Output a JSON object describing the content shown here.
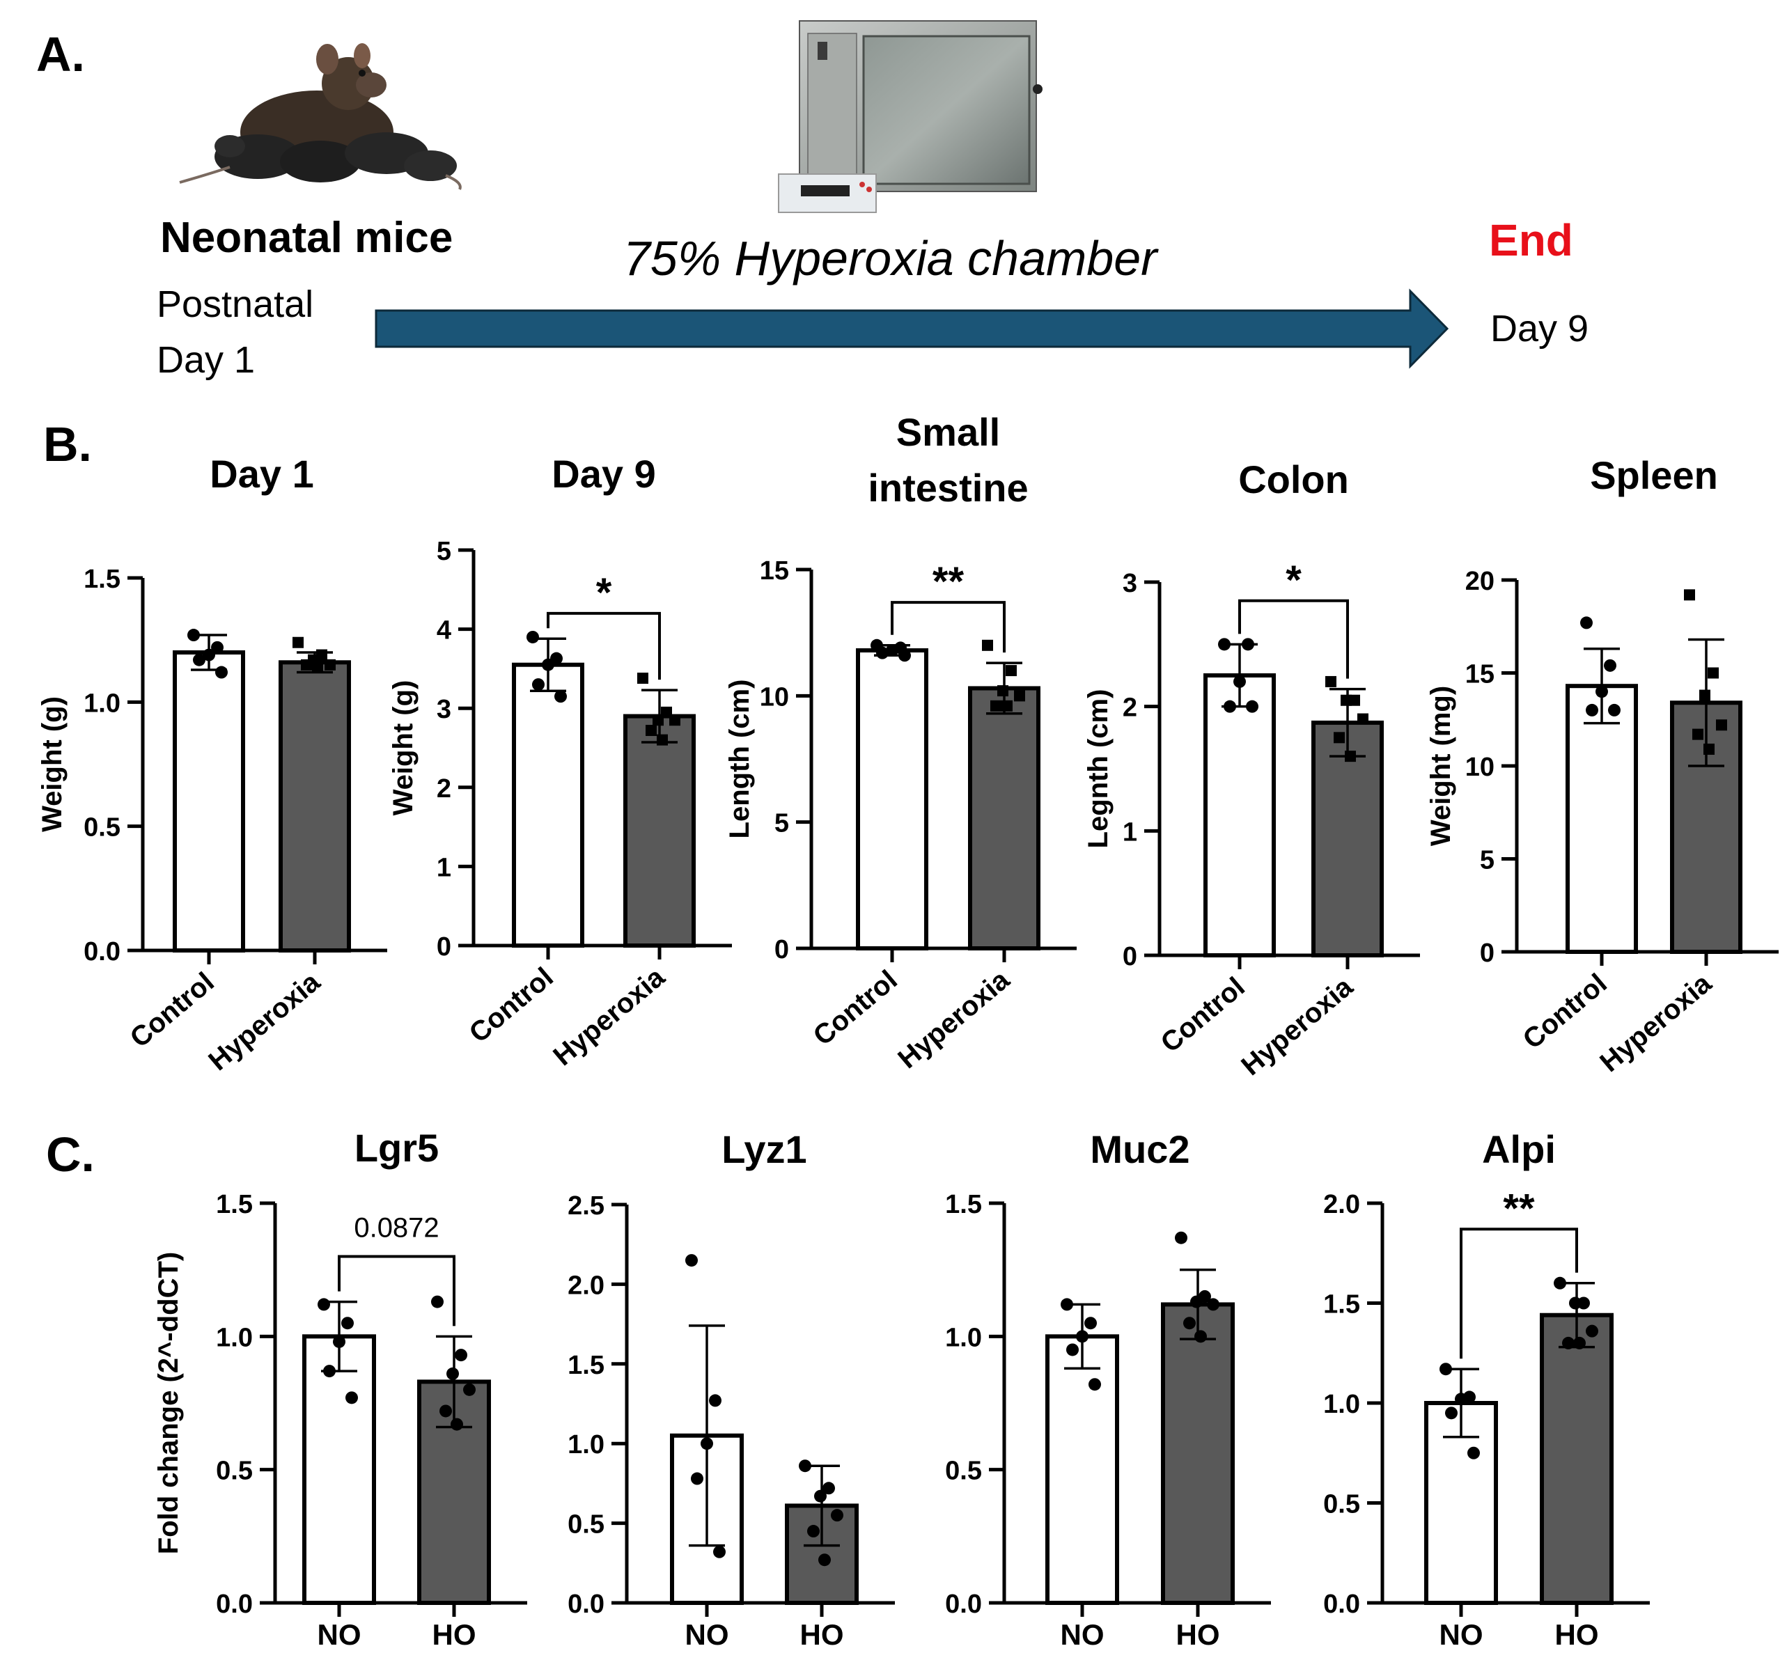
{
  "panel_a": {
    "letter": "A.",
    "start_title": "Neonatal mice",
    "start_line1": "Postnatal",
    "start_line2": "Day 1",
    "chamber_label": "75% Hyperoxia chamber",
    "end_title": "End",
    "end_day": "Day 9",
    "colors": {
      "arrow": "#1b5577",
      "end_text": "#e8101a"
    }
  },
  "panel_b": {
    "letter": "B."
  },
  "panel_c": {
    "letter": "C."
  },
  "colors": {
    "control_bar": "#ffffff",
    "treated_bar": "#595959",
    "ink": "#000000"
  },
  "chart_data": [
    {
      "id": "b1",
      "type": "bar",
      "title": [
        "Day 1"
      ],
      "ylabel": "Weight (g)",
      "ylim": [
        0,
        1.5
      ],
      "yticks": [
        "0.0",
        "0.5",
        "1.0",
        "1.5"
      ],
      "categories": [
        "Control",
        "Hyperoxia"
      ],
      "rotated_labels": true,
      "values": [
        1.2,
        1.16
      ],
      "sd": [
        0.07,
        0.04
      ],
      "points": [
        [
          1.27,
          1.22,
          1.19,
          1.17,
          1.12
        ],
        [
          1.24,
          1.19,
          1.17,
          1.15,
          1.15,
          1.14
        ]
      ],
      "significance": null
    },
    {
      "id": "b2",
      "type": "bar",
      "title": [
        "Day 9"
      ],
      "ylabel": "Weight (g)",
      "ylim": [
        0,
        5
      ],
      "yticks": [
        "0",
        "1",
        "2",
        "3",
        "4",
        "5"
      ],
      "categories": [
        "Control",
        "Hyperoxia"
      ],
      "rotated_labels": true,
      "values": [
        3.55,
        2.9
      ],
      "sd": [
        0.33,
        0.33
      ],
      "points": [
        [
          3.9,
          3.63,
          3.55,
          3.3,
          3.15
        ],
        [
          3.38,
          2.95,
          2.85,
          2.85,
          2.72,
          2.6
        ]
      ],
      "significance": {
        "label": "*",
        "y": 4.2
      }
    },
    {
      "id": "b3",
      "type": "bar",
      "title": [
        "Small",
        "intestine"
      ],
      "ylabel": "Length (cm)",
      "ylim": [
        0,
        15
      ],
      "yticks": [
        "0",
        "5",
        "10",
        "15"
      ],
      "categories": [
        "Control",
        "Hyperoxia"
      ],
      "rotated_labels": true,
      "values": [
        11.8,
        10.3
      ],
      "sd": [
        0.2,
        1.0
      ],
      "points": [
        [
          12.0,
          11.9,
          11.8,
          11.7,
          11.6
        ],
        [
          12.0,
          11.0,
          10.2,
          10.0,
          9.6,
          9.6
        ]
      ],
      "significance": {
        "label": "**",
        "y": 13.7
      }
    },
    {
      "id": "b4",
      "type": "bar",
      "title": [
        "Colon"
      ],
      "ylabel": "Legnth (cm)",
      "ylim": [
        0,
        3
      ],
      "yticks": [
        "0",
        "1",
        "2",
        "3"
      ],
      "categories": [
        "Control",
        "Hyperoxia"
      ],
      "rotated_labels": true,
      "values": [
        2.25,
        1.87
      ],
      "sd": [
        0.25,
        0.27
      ],
      "points": [
        [
          2.5,
          2.5,
          2.2,
          2.0,
          2.0
        ],
        [
          2.2,
          2.05,
          2.05,
          1.9,
          1.75,
          1.6
        ]
      ],
      "significance": {
        "label": "*",
        "y": 2.85
      }
    },
    {
      "id": "b5",
      "type": "bar",
      "title": [
        "Spleen"
      ],
      "ylabel": "Weight (mg)",
      "ylim": [
        0,
        20
      ],
      "yticks": [
        "0",
        "5",
        "10",
        "15",
        "20"
      ],
      "categories": [
        "Control",
        "Hyperoxia"
      ],
      "rotated_labels": true,
      "values": [
        14.3,
        13.4
      ],
      "sd": [
        2.0,
        3.4
      ],
      "points": [
        [
          17.7,
          15.4,
          14.0,
          13.0,
          13.0
        ],
        [
          19.2,
          15.0,
          13.8,
          12.2,
          11.7,
          10.9
        ]
      ],
      "significance": null
    },
    {
      "id": "c1",
      "type": "bar",
      "title": [
        "Lgr5"
      ],
      "ylabel": "Fold change (2^-ddCT)",
      "ylim": [
        0,
        1.5
      ],
      "yticks": [
        "0.0",
        "0.5",
        "1.0",
        "1.5"
      ],
      "categories": [
        "NO",
        "HO"
      ],
      "rotated_labels": false,
      "values": [
        1.0,
        0.83
      ],
      "sd": [
        0.13,
        0.17
      ],
      "points": [
        [
          1.12,
          1.05,
          0.98,
          0.87,
          0.77
        ],
        [
          1.13,
          0.93,
          0.86,
          0.8,
          0.72,
          0.67
        ]
      ],
      "significance": {
        "label": "0.0872",
        "y": 1.3
      }
    },
    {
      "id": "c2",
      "type": "bar",
      "title": [
        "Lyz1"
      ],
      "ylabel": "",
      "ylim": [
        0,
        2.5
      ],
      "yticks": [
        "0.0",
        "0.5",
        "1.0",
        "1.5",
        "2.0",
        "2.5"
      ],
      "categories": [
        "NO",
        "HO"
      ],
      "rotated_labels": false,
      "values": [
        1.05,
        0.61
      ],
      "sd": [
        0.69,
        0.25
      ],
      "points": [
        [
          2.15,
          1.27,
          1.0,
          0.78,
          0.32
        ],
        [
          0.86,
          0.72,
          0.67,
          0.55,
          0.45,
          0.27
        ]
      ],
      "significance": null
    },
    {
      "id": "c3",
      "type": "bar",
      "title": [
        "Muc2"
      ],
      "ylabel": "",
      "ylim": [
        0,
        1.5
      ],
      "yticks": [
        "0.0",
        "0.5",
        "1.0",
        "1.5"
      ],
      "categories": [
        "NO",
        "HO"
      ],
      "rotated_labels": false,
      "values": [
        1.0,
        1.12
      ],
      "sd": [
        0.12,
        0.13
      ],
      "points": [
        [
          1.12,
          1.05,
          1.0,
          0.95,
          0.82
        ],
        [
          1.37,
          1.15,
          1.13,
          1.12,
          1.05,
          1.0
        ]
      ],
      "significance": null
    },
    {
      "id": "c4",
      "type": "bar",
      "title": [
        "Alpi"
      ],
      "ylabel": "",
      "ylim": [
        0,
        2.0
      ],
      "yticks": [
        "0.0",
        "0.5",
        "1.0",
        "1.5",
        "2.0"
      ],
      "categories": [
        "NO",
        "HO"
      ],
      "rotated_labels": false,
      "values": [
        1.0,
        1.44
      ],
      "sd": [
        0.17,
        0.16
      ],
      "points": [
        [
          1.17,
          1.03,
          1.02,
          0.95,
          0.75
        ],
        [
          1.6,
          1.5,
          1.5,
          1.36,
          1.3,
          1.3
        ]
      ],
      "significance": {
        "label": "**",
        "y": 1.87
      }
    }
  ]
}
